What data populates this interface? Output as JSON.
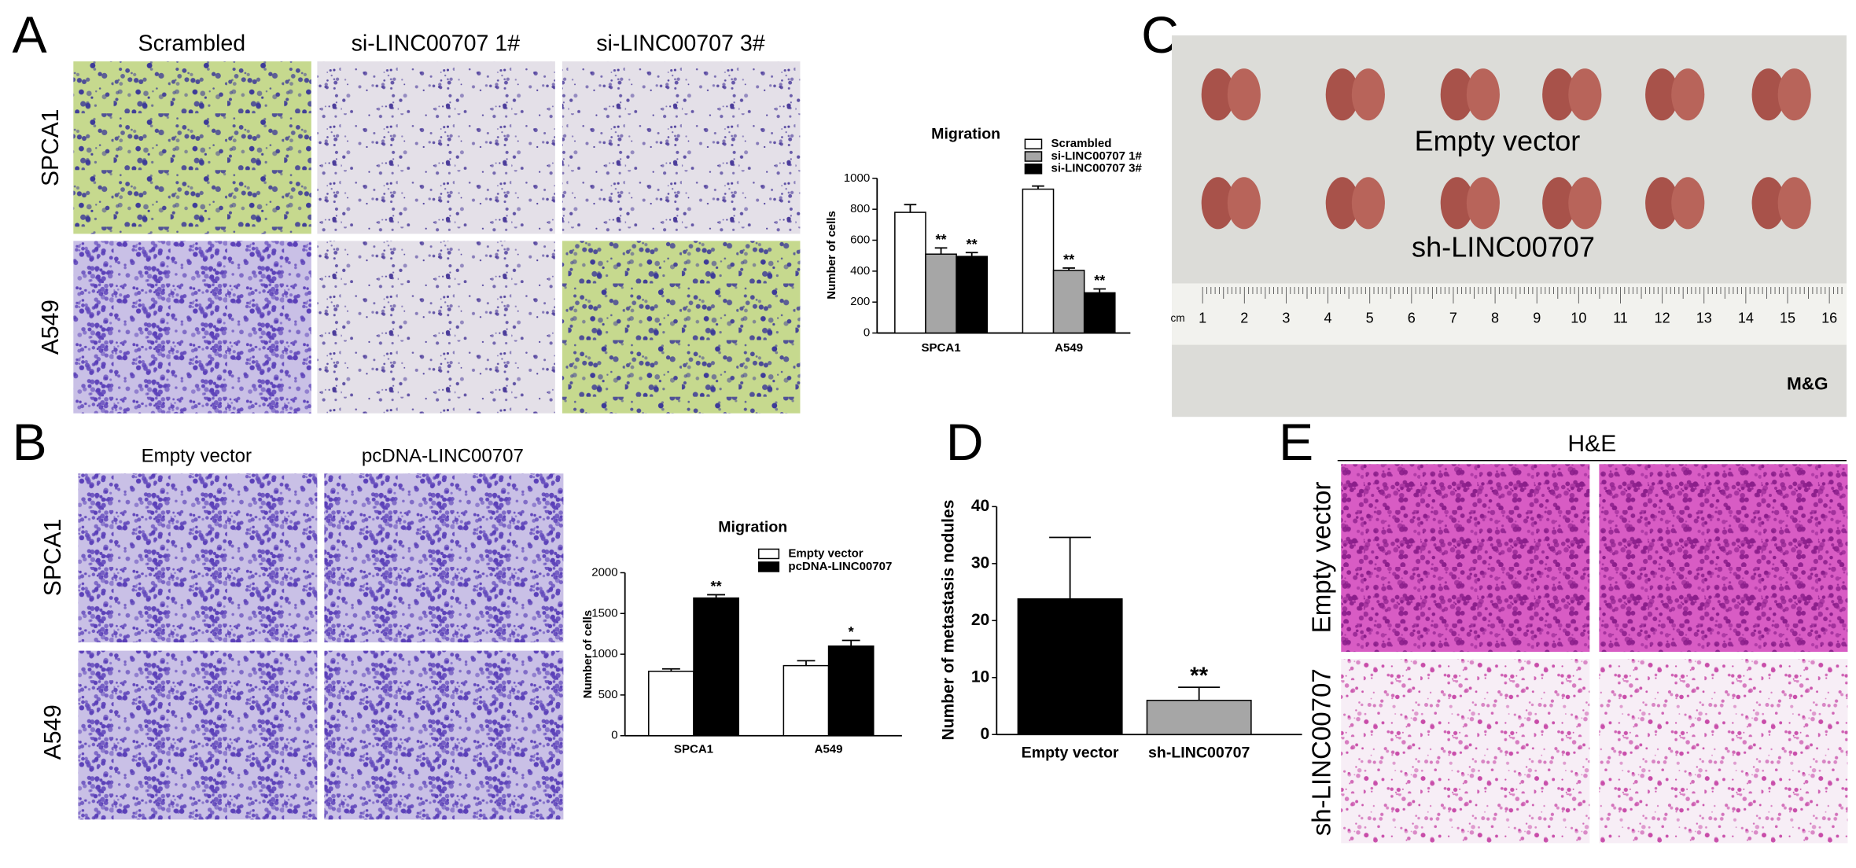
{
  "panel_labels": [
    "A",
    "B",
    "C",
    "D",
    "E"
  ],
  "panel_a": {
    "columns": [
      "Scrambled",
      "si-LINC00707 1#",
      "si-LINC00707 3#"
    ],
    "rows": [
      "SPCA1",
      "A549"
    ]
  },
  "panel_b": {
    "columns": [
      "Empty vector",
      "pcDNA-LINC00707"
    ],
    "rows": [
      "SPCA1",
      "A549"
    ]
  },
  "panel_c": {
    "labels": [
      "Empty vector",
      "sh-LINC00707"
    ],
    "ruler": [
      "cm",
      "1",
      "2",
      "3",
      "4",
      "5",
      "6",
      "7",
      "8",
      "9",
      "10",
      "11",
      "12",
      "13",
      "14",
      "15",
      "16"
    ],
    "brand": "M&G"
  },
  "panel_e": {
    "title": "H&E",
    "rows": [
      "Empty vector",
      "sh-LINC00707"
    ]
  },
  "chart_data": [
    {
      "type": "bar",
      "title": "Migration",
      "y_label": "Number of cells",
      "categories": [
        "SPCA1",
        "A549"
      ],
      "series": [
        {
          "name": "Scrambled",
          "color": "#ffffff",
          "values": [
            780,
            930
          ],
          "errors": [
            50,
            20
          ]
        },
        {
          "name": "si-LINC00707 1#",
          "color": "#a6a6a6",
          "values": [
            510,
            405
          ],
          "errors": [
            40,
            15
          ],
          "significance": [
            "**",
            "**"
          ]
        },
        {
          "name": "si-LINC00707 3#",
          "color": "#000000",
          "values": [
            495,
            260
          ],
          "errors": [
            25,
            25
          ],
          "significance": [
            "**",
            "**"
          ]
        }
      ],
      "ylim": [
        0,
        1000
      ],
      "yticks": [
        0,
        200,
        400,
        600,
        800,
        1000
      ]
    },
    {
      "type": "bar",
      "title": "Migration",
      "y_label": "Number of cells",
      "categories": [
        "SPCA1",
        "A549"
      ],
      "series": [
        {
          "name": "Empty vector",
          "color": "#ffffff",
          "values": [
            790,
            860
          ],
          "errors": [
            30,
            60
          ]
        },
        {
          "name": "pcDNA-LINC00707",
          "color": "#000000",
          "values": [
            1690,
            1100
          ],
          "errors": [
            40,
            70
          ],
          "significance": [
            "**",
            "*"
          ]
        }
      ],
      "ylim": [
        0,
        2000
      ],
      "yticks": [
        0,
        500,
        1000,
        1500,
        2000
      ]
    },
    {
      "type": "bar",
      "y_label": "Number of metastasis nodules",
      "categories": [
        "Empty vector",
        "sh-LINC00707"
      ],
      "values": [
        23.8,
        6
      ],
      "errors": [
        10.8,
        2.3
      ],
      "colors": [
        "#000000",
        "#a6a6a6"
      ],
      "significance": [
        null,
        "**"
      ],
      "ylim": [
        0,
        40
      ],
      "yticks": [
        0,
        10,
        20,
        30,
        40
      ]
    }
  ]
}
